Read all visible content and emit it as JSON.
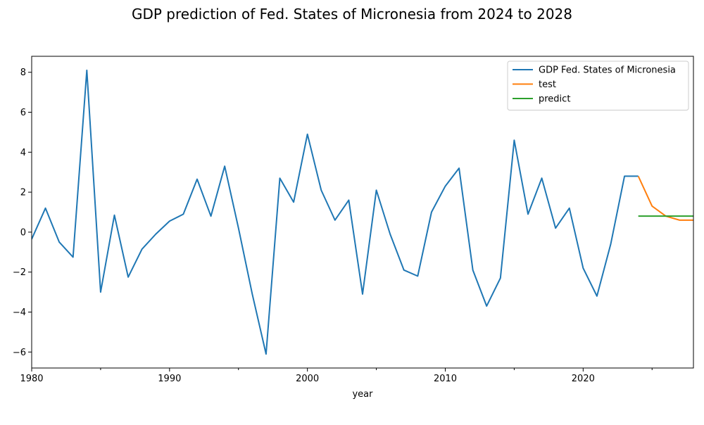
{
  "chart_data": {
    "type": "line",
    "title": "GDP prediction of Fed. States of Micronesia from 2024 to 2028",
    "xlabel": "year",
    "ylabel": "",
    "xlim": [
      1980,
      2028
    ],
    "ylim": [
      -6.8,
      8.8
    ],
    "x_ticks": [
      1980,
      1990,
      2000,
      2010,
      2020
    ],
    "y_ticks": [
      -6,
      -4,
      -2,
      0,
      2,
      4,
      6,
      8
    ],
    "legend_position": "top-right",
    "grid": false,
    "series": [
      {
        "name": "GDP Fed. States of Micronesia",
        "color": "#1f77b4",
        "x": [
          1980,
          1981,
          1982,
          1983,
          1984,
          1985,
          1986,
          1987,
          1988,
          1989,
          1990,
          1991,
          1992,
          1993,
          1994,
          1995,
          1996,
          1997,
          1998,
          1999,
          2000,
          2001,
          2002,
          2003,
          2004,
          2005,
          2006,
          2007,
          2008,
          2009,
          2010,
          2011,
          2012,
          2013,
          2014,
          2015,
          2016,
          2017,
          2018,
          2019,
          2020,
          2021,
          2022,
          2023,
          2024
        ],
        "values": [
          -0.35,
          1.2,
          -0.5,
          -1.25,
          8.1,
          -3.0,
          0.85,
          -2.25,
          -0.85,
          -0.1,
          0.55,
          0.9,
          2.65,
          0.8,
          3.3,
          0.2,
          -3.1,
          -6.1,
          2.7,
          1.5,
          4.9,
          2.1,
          0.6,
          1.6,
          -3.1,
          2.1,
          -0.1,
          -1.9,
          -2.2,
          1.0,
          2.3,
          3.2,
          -1.9,
          -3.7,
          -2.3,
          4.6,
          0.9,
          2.7,
          0.2,
          1.2,
          -1.8,
          -3.2,
          -0.6,
          2.8,
          2.8
        ]
      },
      {
        "name": "test",
        "color": "#ff7f0e",
        "x": [
          2024,
          2025,
          2026,
          2027,
          2028
        ],
        "values": [
          2.8,
          1.3,
          0.8,
          0.6,
          0.6
        ]
      },
      {
        "name": "predict",
        "color": "#2ca02c",
        "x": [
          2024,
          2025,
          2026,
          2027,
          2028
        ],
        "values": [
          0.8,
          0.8,
          0.8,
          0.8,
          0.8
        ]
      }
    ]
  }
}
